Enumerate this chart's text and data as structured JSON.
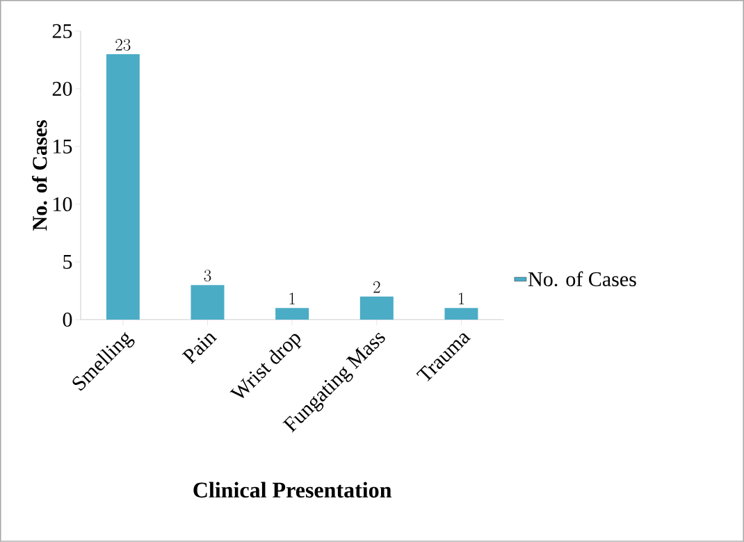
{
  "chart_data": {
    "type": "bar",
    "xlabel": "Clinical Presentation",
    "ylabel": "No. of Cases",
    "categories": [
      "Smelling",
      "Pain",
      "Wrist drop",
      "Fungating Mass",
      "Trauma"
    ],
    "series": [
      {
        "name": "No. of Cases",
        "color": "#4bacc6",
        "values": [
          23,
          3,
          1,
          2,
          1
        ]
      }
    ],
    "ylim": [
      0,
      25
    ],
    "yticks": [
      0,
      5,
      10,
      15,
      20,
      25
    ],
    "data_labels": true,
    "legend": "right",
    "grid": false
  }
}
